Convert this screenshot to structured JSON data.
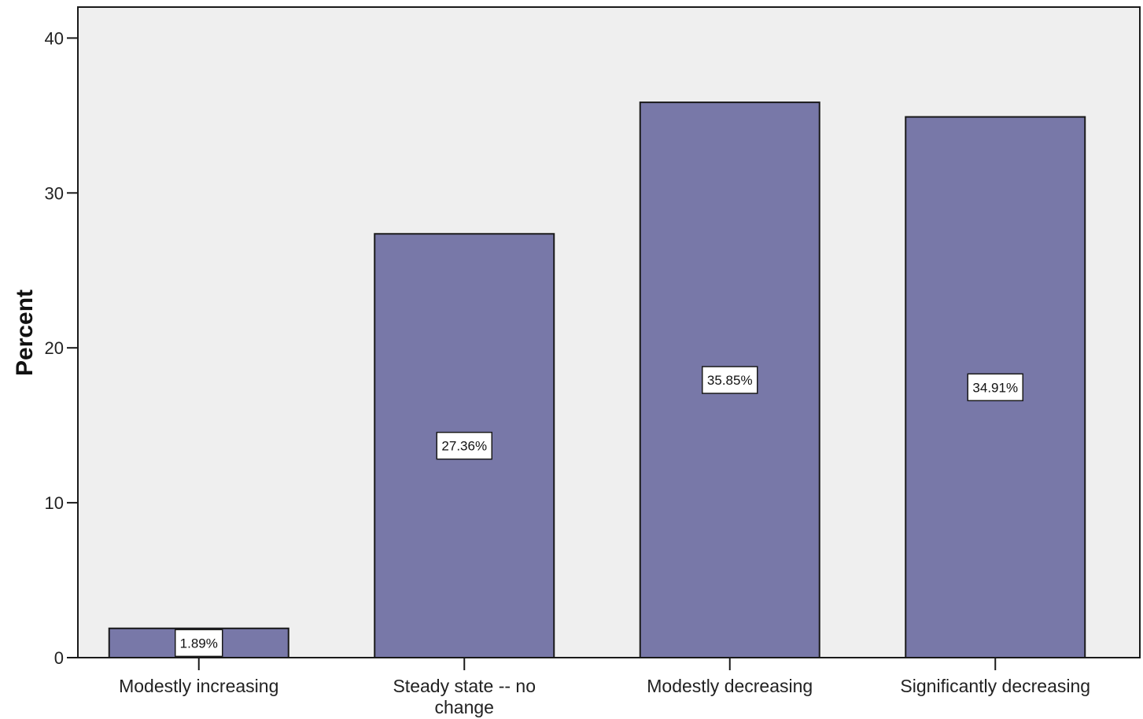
{
  "chart_data": {
    "type": "bar",
    "categories": [
      "Modestly increasing",
      "Steady state -- no change",
      "Modestly decreasing",
      "Significantly decreasing"
    ],
    "category_lines": [
      [
        "Modestly increasing"
      ],
      [
        "Steady state -- no",
        "change"
      ],
      [
        "Modestly decreasing"
      ],
      [
        "Significantly decreasing"
      ]
    ],
    "values": [
      1.89,
      27.36,
      35.85,
      34.91
    ],
    "data_labels": [
      "1.89%",
      "27.36%",
      "35.85%",
      "34.91%"
    ],
    "ylabel": "Percent",
    "xlabel": "",
    "ylim": [
      0,
      42
    ],
    "yticks": [
      0,
      10,
      20,
      30,
      40
    ],
    "grid": false,
    "colors": {
      "bar_fill": "#7878a8",
      "bar_stroke": "#1a1a1a",
      "plot_background": "#efefef",
      "label_box_fill": "#ffffff"
    }
  }
}
